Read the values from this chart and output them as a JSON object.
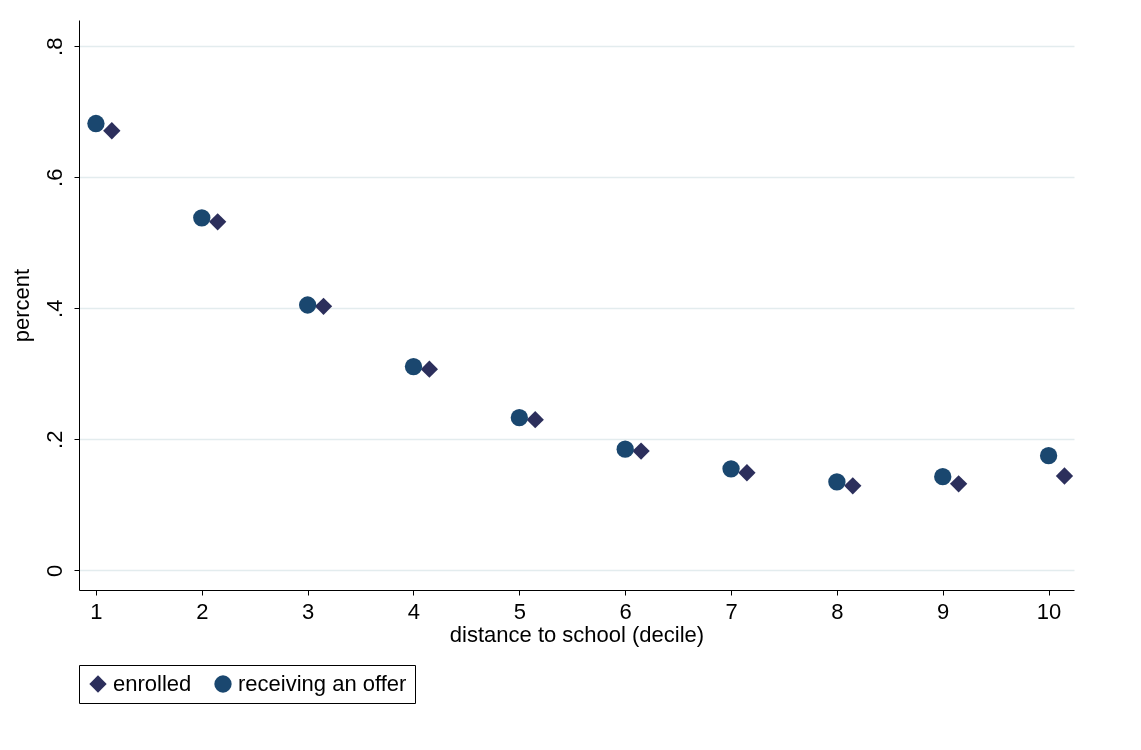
{
  "chart_data": {
    "type": "scatter",
    "xlabel": "distance to school (decile)",
    "ylabel": "percent",
    "xlim": [
      0.84,
      10.24
    ],
    "xticks": [
      1,
      2,
      3,
      4,
      5,
      6,
      7,
      8,
      9,
      10
    ],
    "ylim": [
      -0.03,
      0.84
    ],
    "yticks": [
      0,
      {
        "value": 0.2,
        "label": ".2"
      },
      {
        "value": 0.4,
        "label": ".4"
      },
      {
        "value": 0.6,
        "label": ".6"
      },
      {
        "value": 0.8,
        "label": ".8"
      }
    ],
    "grid": "y",
    "legend": "bottom",
    "series": [
      {
        "name": "enrolled",
        "color": "#2c2f5c",
        "marker": "diamond",
        "x": [
          1.15,
          2.15,
          3.15,
          4.15,
          5.15,
          6.15,
          7.15,
          8.15,
          9.15,
          10.15
        ],
        "values": [
          0.671,
          0.532,
          0.403,
          0.307,
          0.23,
          0.182,
          0.149,
          0.129,
          0.132,
          0.144
        ]
      },
      {
        "name": "receiving an offer",
        "color": "#1a476f",
        "marker": "circle",
        "x": [
          1,
          2,
          3,
          4,
          5,
          6,
          7,
          8,
          9,
          10
        ],
        "values": [
          0.682,
          0.538,
          0.405,
          0.311,
          0.233,
          0.185,
          0.155,
          0.135,
          0.143,
          0.175
        ]
      }
    ]
  }
}
